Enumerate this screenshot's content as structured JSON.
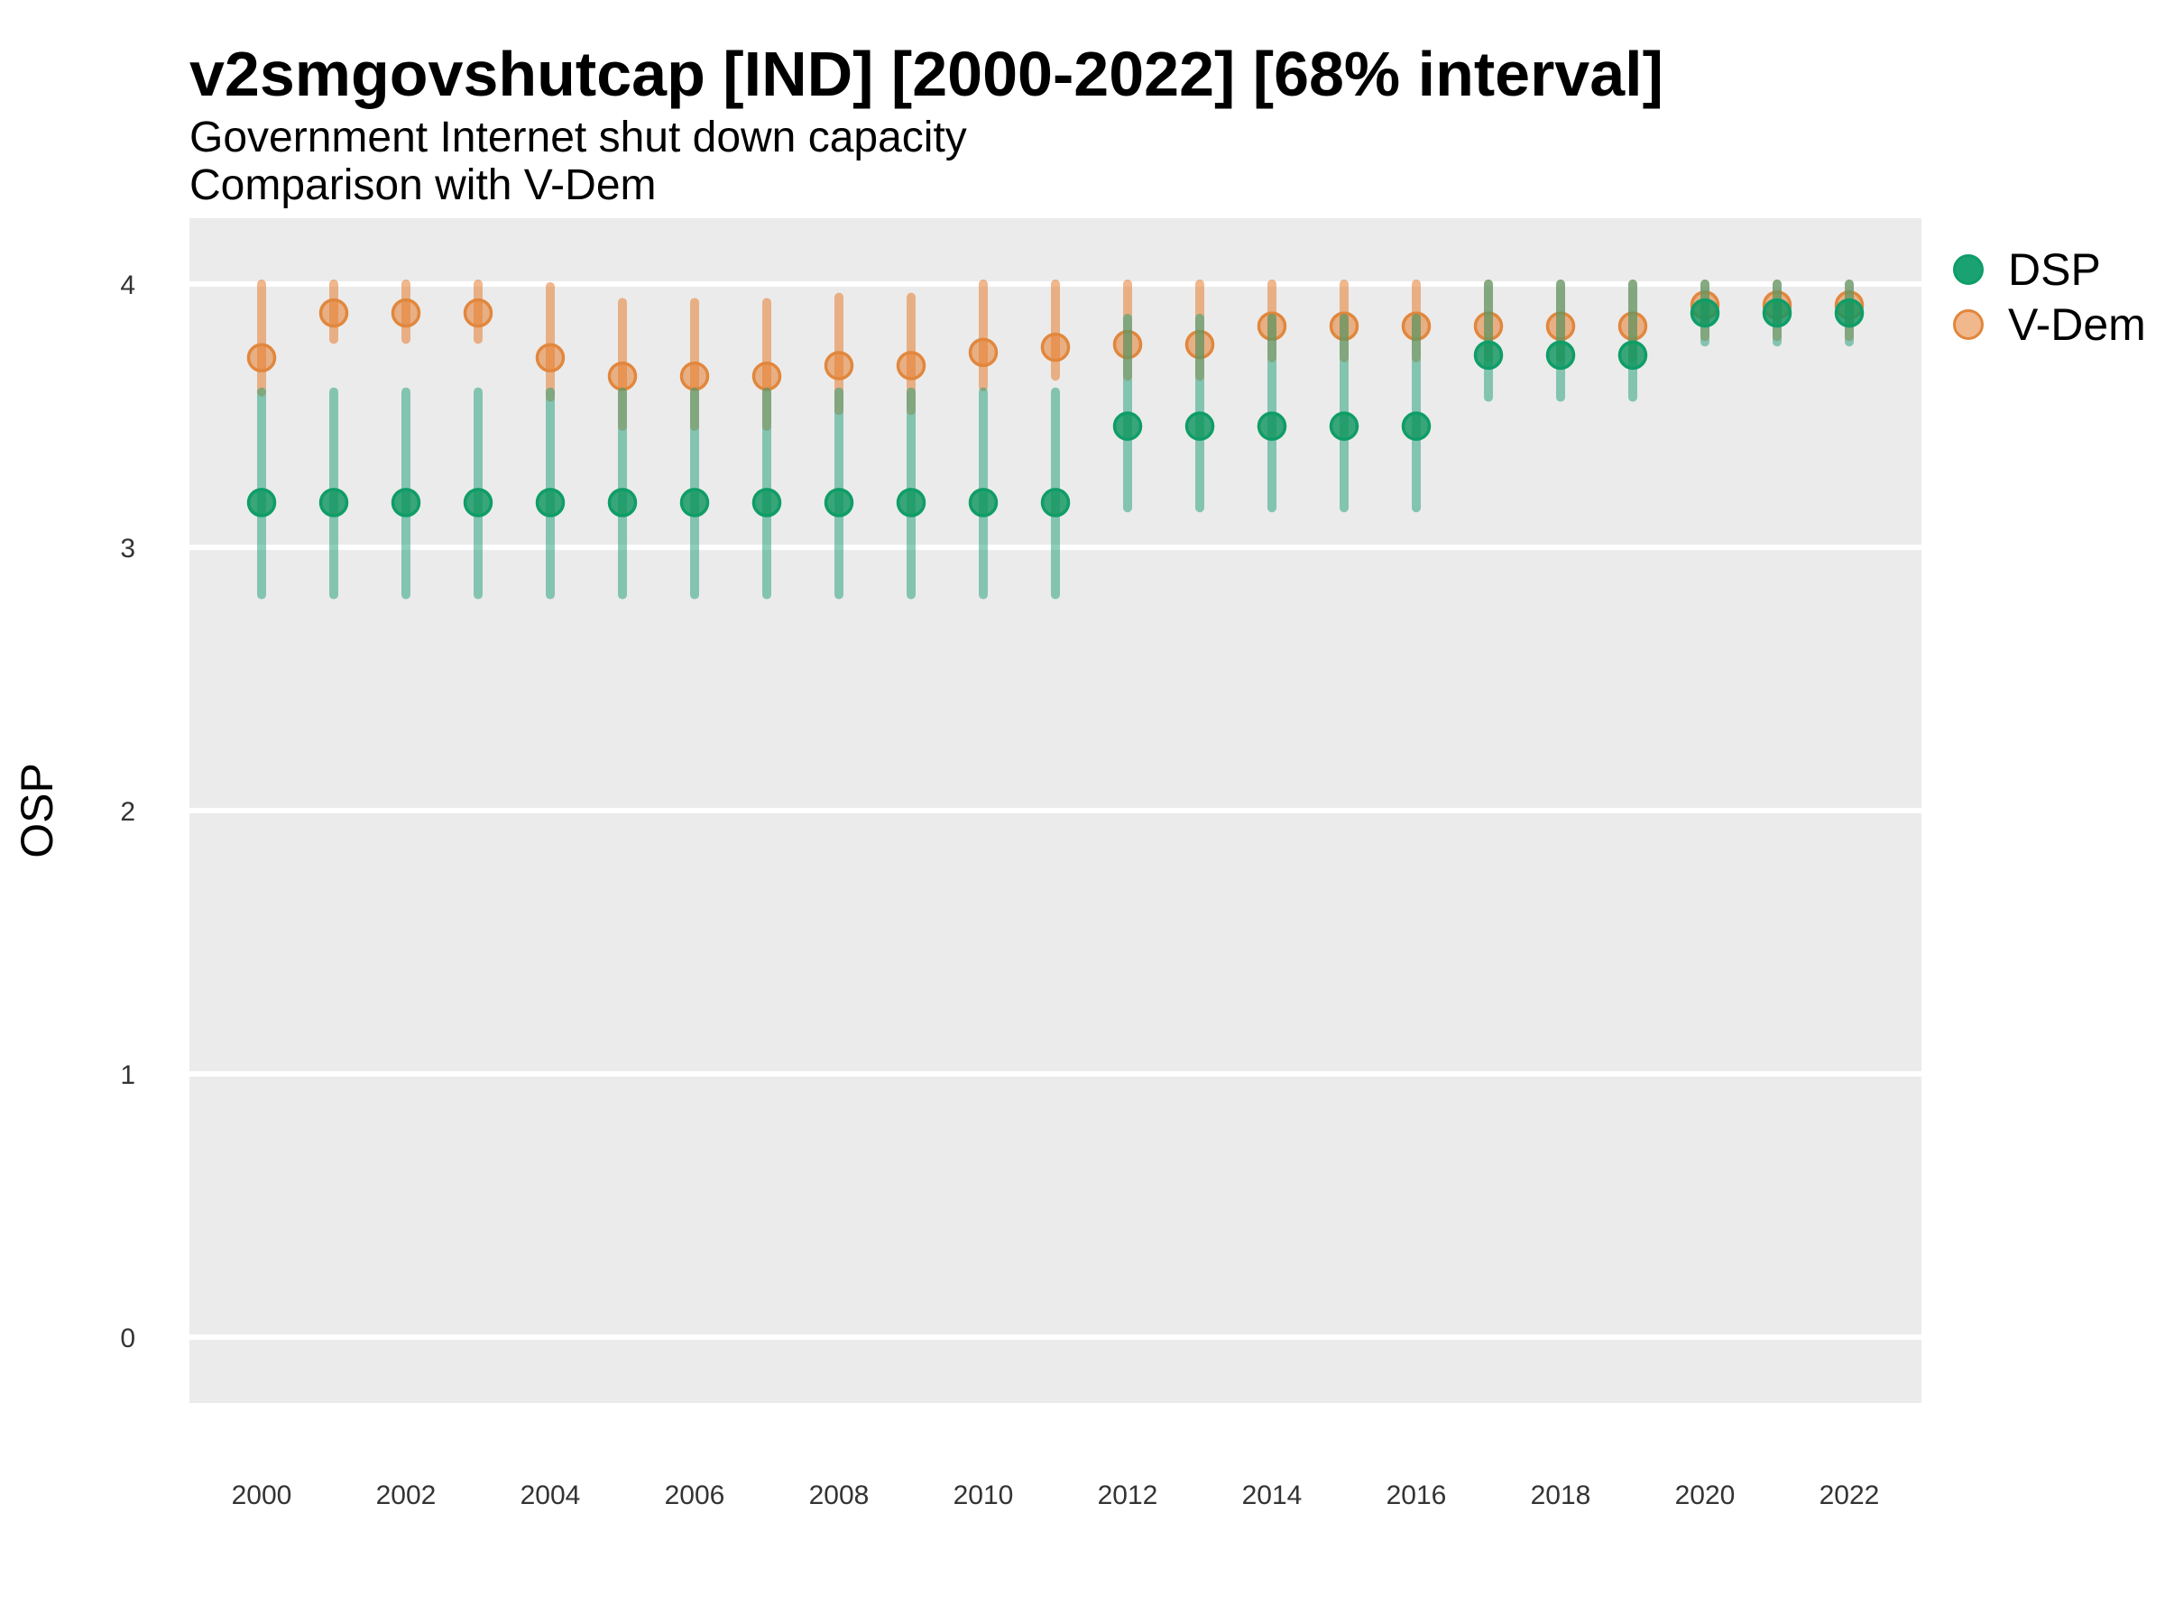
{
  "header": {
    "title": "v2smgovshutcap [IND] [2000-2022] [68% interval]",
    "subtitle_line1": "Government Internet shut down capacity",
    "subtitle_line2": "Comparison with V-Dem"
  },
  "axes": {
    "y_title": "OSP",
    "y_ticks": [
      0,
      1,
      2,
      3,
      4
    ],
    "x_ticks": [
      2000,
      2002,
      2004,
      2006,
      2008,
      2010,
      2012,
      2014,
      2016,
      2018,
      2020,
      2022
    ]
  },
  "legend": {
    "items": [
      {
        "id": "dsp",
        "label": "DSP"
      },
      {
        "id": "vdem",
        "label": "V-Dem"
      }
    ]
  },
  "colors": {
    "plot_bg": "#EBEBEB",
    "grid": "#FFFFFF",
    "dsp_solid": "#1B9E77",
    "dsp_bar": "rgba(27,158,119,0.5)",
    "dsp_point_fill": "rgba(16,150,95,0.82)",
    "dsp_point_stroke": "#0f9d67",
    "vdem_bar": "rgba(230,126,48,0.55)",
    "vdem_point_fill": "rgba(230,126,48,0.55)",
    "vdem_point_stroke": "#e1873d",
    "legend_dsp_fill": "#1aa273",
    "legend_vdem_fill": "#f1b88d"
  },
  "chart_data": {
    "type": "scatter",
    "title": "v2smgovshutcap [IND] [2000-2022] [68% interval]",
    "subtitle": [
      "Government Internet shut down capacity",
      "Comparison with V-Dem"
    ],
    "xlabel": "",
    "ylabel": "OSP",
    "interval": "68%",
    "legend_position": "right",
    "grid": "major-y-white-on-gray",
    "xlim": [
      1999,
      2023
    ],
    "ylim": [
      -0.25,
      4.25
    ],
    "x": [
      2000,
      2001,
      2002,
      2003,
      2004,
      2005,
      2006,
      2007,
      2008,
      2009,
      2010,
      2011,
      2012,
      2013,
      2014,
      2015,
      2016,
      2017,
      2018,
      2019,
      2020,
      2021,
      2022
    ],
    "series": [
      {
        "name": "DSP",
        "values": [
          3.17,
          3.17,
          3.17,
          3.17,
          3.17,
          3.17,
          3.17,
          3.17,
          3.17,
          3.17,
          3.17,
          3.17,
          3.46,
          3.46,
          3.46,
          3.46,
          3.46,
          3.73,
          3.73,
          3.73,
          3.89,
          3.89,
          3.89
        ],
        "lower": [
          2.82,
          2.82,
          2.82,
          2.82,
          2.82,
          2.82,
          2.82,
          2.82,
          2.82,
          2.82,
          2.82,
          2.82,
          3.15,
          3.15,
          3.15,
          3.15,
          3.15,
          3.57,
          3.57,
          3.57,
          3.78,
          3.78,
          3.78
        ],
        "upper": [
          3.59,
          3.59,
          3.59,
          3.59,
          3.59,
          3.59,
          3.59,
          3.59,
          3.59,
          3.59,
          3.59,
          3.59,
          3.87,
          3.87,
          3.87,
          3.87,
          3.87,
          4.0,
          4.0,
          4.0,
          4.0,
          4.0,
          4.0
        ]
      },
      {
        "name": "V-Dem",
        "values": [
          3.72,
          3.89,
          3.89,
          3.89,
          3.72,
          3.65,
          3.65,
          3.65,
          3.69,
          3.69,
          3.74,
          3.76,
          3.77,
          3.77,
          3.84,
          3.84,
          3.84,
          3.84,
          3.84,
          3.84,
          3.92,
          3.92,
          3.92
        ],
        "lower": [
          3.59,
          3.79,
          3.79,
          3.79,
          3.57,
          3.46,
          3.46,
          3.46,
          3.52,
          3.52,
          3.61,
          3.65,
          3.65,
          3.65,
          3.72,
          3.72,
          3.72,
          3.72,
          3.72,
          3.72,
          3.8,
          3.8,
          3.8
        ],
        "upper": [
          4.0,
          4.0,
          4.0,
          4.0,
          3.99,
          3.93,
          3.93,
          3.93,
          3.95,
          3.95,
          4.0,
          4.0,
          4.0,
          4.0,
          4.0,
          4.0,
          4.0,
          4.0,
          4.0,
          4.0,
          4.0,
          4.0,
          4.0
        ]
      }
    ]
  }
}
